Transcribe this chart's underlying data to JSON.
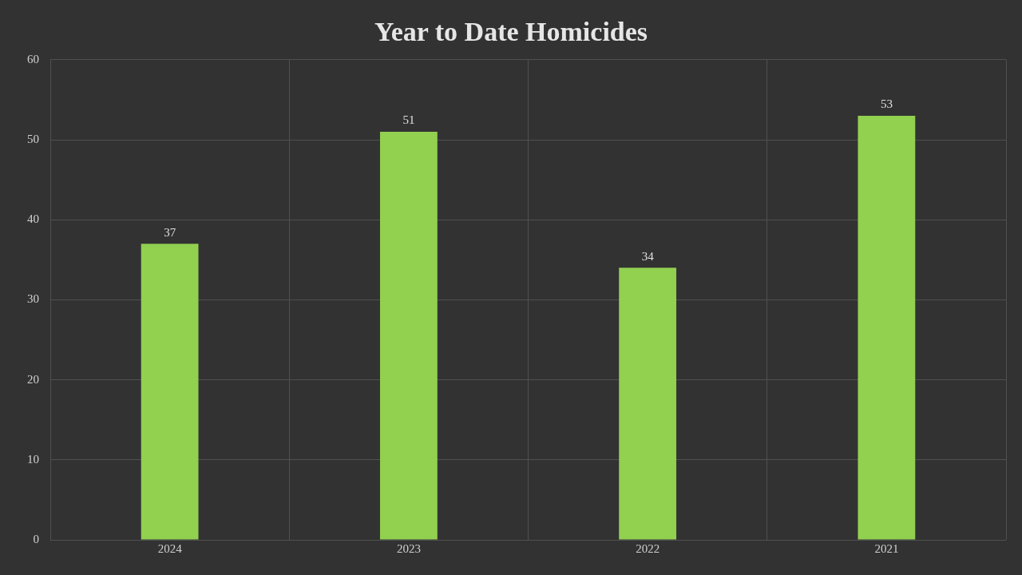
{
  "chart_data": {
    "type": "bar",
    "title": "Year to Date Homicides",
    "categories": [
      "2024",
      "2023",
      "2022",
      "2021"
    ],
    "values": [
      37,
      51,
      34,
      53
    ],
    "color": "#92d050",
    "ylim": [
      0,
      60
    ],
    "yticks": [
      0,
      10,
      20,
      30,
      40,
      50,
      60
    ],
    "grid": true,
    "data_labels": true
  }
}
